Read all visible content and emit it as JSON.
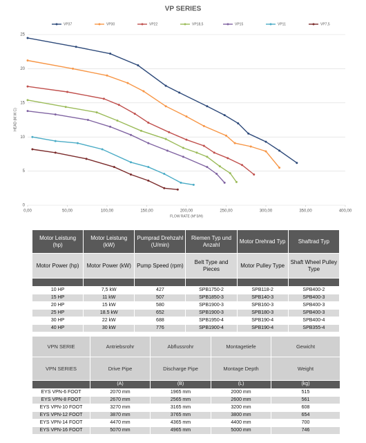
{
  "chart_data": {
    "type": "line",
    "title": "VP SERIES",
    "x_label": "FLOW RATE (M^3/H)",
    "y_label": "HEAD (M.W.C)",
    "xlim": [
      0,
      400
    ],
    "ylim": [
      0,
      25
    ],
    "grid": true,
    "legend": "top",
    "xticks": [
      {
        "value": 0,
        "label": "0,00"
      },
      {
        "value": 50,
        "label": "50,00"
      },
      {
        "value": 100,
        "label": "100,00"
      },
      {
        "value": 150,
        "label": "150,00"
      },
      {
        "value": 200,
        "label": "200,00"
      },
      {
        "value": 250,
        "label": "250,00"
      },
      {
        "value": 300,
        "label": "300,00"
      },
      {
        "value": 350,
        "label": "350,00"
      },
      {
        "value": 400,
        "label": "400,00"
      }
    ],
    "yticks": [
      0,
      5,
      10,
      15,
      20,
      25
    ],
    "series": [
      {
        "name": "VP37",
        "color": "#2e4a7a",
        "x": [
          0,
          61,
          104,
          139,
          174,
          191,
          226,
          248,
          265,
          278,
          300,
          317,
          339
        ],
        "values": [
          24.5,
          23.2,
          22.2,
          20.5,
          17.5,
          16.5,
          14.5,
          13.2,
          12,
          10.5,
          9.3,
          8,
          6.2
        ]
      },
      {
        "name": "VP30",
        "color": "#f79646",
        "x": [
          0,
          57,
          100,
          126,
          146,
          174,
          200,
          222,
          250,
          261,
          281,
          300,
          317
        ],
        "values": [
          21.2,
          20,
          19,
          17.9,
          16.7,
          14.5,
          13,
          11.6,
          10.2,
          9.1,
          8.6,
          7.9,
          5.5
        ]
      },
      {
        "name": "VP22",
        "color": "#c0504d",
        "x": [
          0,
          50,
          96,
          115,
          135,
          152,
          178,
          200,
          222,
          235,
          252,
          270,
          285
        ],
        "values": [
          17.4,
          16.6,
          15.6,
          14.7,
          13.4,
          12.1,
          10.7,
          9.6,
          8.7,
          7.7,
          6.9,
          5.9,
          4.5
        ]
      },
      {
        "name": "VP18,5",
        "color": "#9bbb59",
        "x": [
          0,
          48,
          87,
          113,
          143,
          174,
          196,
          213,
          226,
          242,
          255,
          263
        ],
        "values": [
          15.4,
          14.4,
          13.6,
          12.4,
          10.9,
          9.7,
          8.4,
          7.7,
          7.1,
          5.7,
          4.7,
          3.4
        ]
      },
      {
        "name": "VP15",
        "color": "#8064a2",
        "x": [
          0,
          35,
          76,
          104,
          130,
          152,
          176,
          196,
          226,
          238,
          248
        ],
        "values": [
          13.8,
          13.3,
          12.5,
          11.5,
          10.3,
          9.1,
          8,
          7.1,
          5.6,
          4.6,
          3.3
        ]
      },
      {
        "name": "VP11",
        "color": "#4bacc6",
        "x": [
          6,
          35,
          63,
          94,
          130,
          152,
          172,
          193,
          209
        ],
        "values": [
          10,
          9.4,
          9.1,
          8.2,
          6.3,
          5.6,
          4.6,
          3.3,
          3
        ]
      },
      {
        "name": "VP7,5",
        "color": "#7b2c2c",
        "x": [
          6,
          35,
          74,
          109,
          130,
          152,
          172,
          189
        ],
        "values": [
          8.2,
          7.7,
          6.8,
          5.6,
          4.5,
          3.6,
          2.5,
          2.3
        ]
      }
    ]
  },
  "table1": {
    "header_de": [
      "Motor Leistung (hp)",
      "Motor Leistung (kW)",
      "Pumprad Drehzahl (U/min)",
      "Riemen Typ und Anzahl",
      "Motor Drehrad Typ",
      "Shaftrad Typ"
    ],
    "header_en": [
      "Motor Power (hp)",
      "Motor Power (kW)",
      "Pump Speed (rpm)",
      "Belt Type and Pieces",
      "Motor Pulley Type",
      "Shaft Wheel Pulley Type"
    ],
    "rows": [
      [
        "10 HP",
        "7,5 kW",
        "427",
        "SPB1750-2",
        "SPB118-2",
        "SPB400-2"
      ],
      [
        "15 HP",
        "11 kW",
        "507",
        "SPB1850-3",
        "SPB140-3",
        "SPB400-3"
      ],
      [
        "20 HP",
        "15 kW",
        "580",
        "SPB1900-3",
        "SPB160-3",
        "SPB400-3"
      ],
      [
        "25 HP",
        "18.5 kW",
        "652",
        "SPB1900-3",
        "SPB180-3",
        "SPB400-3"
      ],
      [
        "30 HP",
        "22 kW",
        "688",
        "SPB1950-4",
        "SPB190-4",
        "SPB400-4"
      ],
      [
        "40 HP",
        "30 kW",
        "776",
        "SPB1900-4",
        "SPB190-4",
        "SPB355-4"
      ]
    ]
  },
  "table2": {
    "header_de": [
      "VPN SERIE",
      "Antriebsrohr",
      "Abflussrohr",
      "Montagetiefe",
      "Gewicht"
    ],
    "header_en": [
      "VPN SERIES",
      "Drive Pipe",
      "Discharge Pipe",
      "Montage Depth",
      "Weight"
    ],
    "units": [
      "(A)",
      "(B)",
      "(L)",
      "(kg)"
    ],
    "rows": [
      [
        "EYS VPN-6 FOOT",
        "2070 mm",
        "1965 mm",
        "2000 mm",
        "515"
      ],
      [
        "EYS VPN-8 FOOT",
        "2670 mm",
        "2565 mm",
        "2600 mm",
        "561"
      ],
      [
        "EYS VPN-10 FOOT",
        "3270 mm",
        "3165 mm",
        "3200 mm",
        "608"
      ],
      [
        "EYS VPN-12 FOOT",
        "3870 mm",
        "3765 mm",
        "3800 mm",
        "654"
      ],
      [
        "EYS VPN-14 FOOT",
        "4470 mm",
        "4365 mm",
        "4400 mm",
        "700"
      ],
      [
        "EYS VPN-16 FOOT",
        "5070 mm",
        "4965 mm",
        "5000 mm",
        "746"
      ]
    ]
  }
}
